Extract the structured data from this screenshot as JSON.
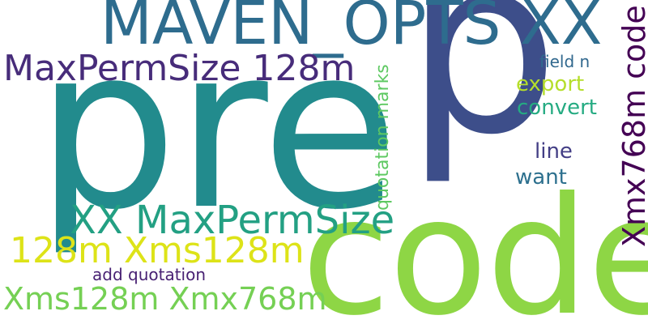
{
  "words": [
    {
      "id": "pre",
      "text": "pre",
      "color": "#228b8d"
    },
    {
      "id": "p",
      "text": "p",
      "color": "#3d4e8a"
    },
    {
      "id": "code",
      "text": "code",
      "color": "#8ed645"
    },
    {
      "id": "maven",
      "text": "MAVEN_OPTS XX",
      "color": "#2e6c8e"
    },
    {
      "id": "mps128",
      "text": "MaxPermSize 128m",
      "color": "#472c7a"
    },
    {
      "id": "xxmps",
      "text": "XX MaxPermSize",
      "color": "#23a083"
    },
    {
      "id": "128xms",
      "text": "128m Xms128m",
      "color": "#dde318"
    },
    {
      "id": "xms768",
      "text": "Xms128m Xmx768m",
      "color": "#75d054"
    },
    {
      "id": "addq",
      "text": "add quotation",
      "color": "#482173"
    },
    {
      "id": "export",
      "text": "export",
      "color": "#b5de2b"
    },
    {
      "id": "convert",
      "text": "convert",
      "color": "#25ab82"
    },
    {
      "id": "line",
      "text": "line",
      "color": "#433e85"
    },
    {
      "id": "want",
      "text": "want",
      "color": "#2d708e"
    },
    {
      "id": "fieldn",
      "text": "field n",
      "color": "#31688e"
    },
    {
      "id": "xmxcode",
      "text": "Xmx768m code",
      "color": "#440154"
    },
    {
      "id": "quotmarks",
      "text": "quotation marks",
      "color": "#5ec962"
    }
  ]
}
